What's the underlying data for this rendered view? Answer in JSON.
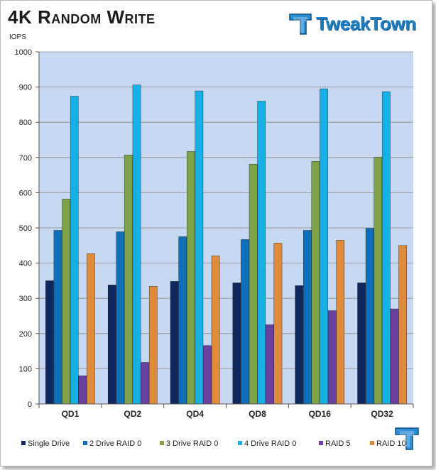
{
  "header": {
    "title": "4K Random Write",
    "brand": "TweakTown"
  },
  "icons": {
    "logo": "tweaktown-tt-logo-icon",
    "badge": "tweaktown-tt-badge-icon"
  },
  "chart_data": {
    "type": "bar",
    "title": "4K Random Write",
    "ylabel": "IOPS",
    "xlabel": "",
    "ylim": [
      0,
      1000
    ],
    "ytick_step": 100,
    "yticks": [
      "0",
      "100",
      "200",
      "300",
      "400",
      "500",
      "600",
      "700",
      "800",
      "900",
      "1000"
    ],
    "grid": true,
    "legend_position": "bottom",
    "plot_background": "#c6d9f1",
    "categories": [
      "QD1",
      "QD2",
      "QD4",
      "QD8",
      "QD16",
      "QD32"
    ],
    "series": [
      {
        "name": "Single Drive",
        "color": "#10285c",
        "values": [
          350,
          338,
          348,
          344,
          336,
          344
        ]
      },
      {
        "name": "2 Drive RAID 0",
        "color": "#0f6fb8",
        "values": [
          493,
          489,
          475,
          467,
          493,
          499
        ]
      },
      {
        "name": "3 Drive RAID 0",
        "color": "#7ea24a",
        "values": [
          582,
          707,
          717,
          681,
          689,
          701
        ]
      },
      {
        "name": "4 Drive RAID 0",
        "color": "#14b0e6",
        "values": [
          874,
          906,
          889,
          860,
          895,
          887
        ]
      },
      {
        "name": "RAID 5",
        "color": "#6a3fa0",
        "values": [
          80,
          118,
          166,
          225,
          265,
          270
        ]
      },
      {
        "name": "RAID 10",
        "color": "#e08a3c",
        "values": [
          427,
          334,
          421,
          457,
          465,
          450
        ]
      }
    ]
  }
}
